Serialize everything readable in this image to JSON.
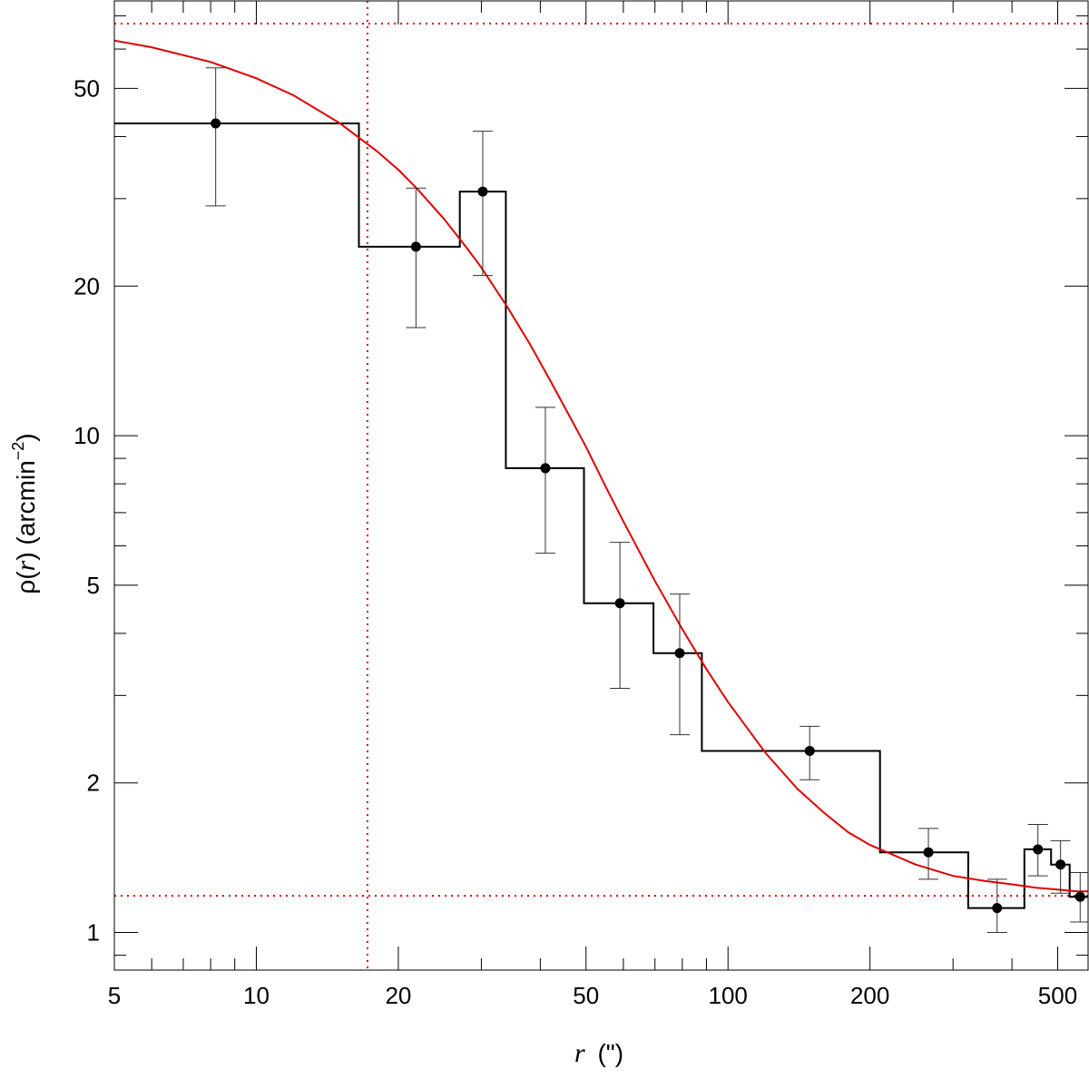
{
  "chart_data": {
    "type": "scatter",
    "title": "",
    "xlabel": {
      "var": "r",
      "unit": "(\")"
    },
    "ylabel": {
      "prefix": "ρ(",
      "var": "r",
      "mid": ") (arcmin",
      "sup": "−2",
      "suffix": ")"
    },
    "x_scale": "log",
    "y_scale": "log",
    "xlim": [
      5,
      580
    ],
    "ylim": [
      0.84,
      75
    ],
    "x_ticks": [
      {
        "value": 5,
        "label": "5"
      },
      {
        "value": 10,
        "label": "10"
      },
      {
        "value": 20,
        "label": "20"
      },
      {
        "value": 50,
        "label": "50"
      },
      {
        "value": 100,
        "label": "100"
      },
      {
        "value": 200,
        "label": "200"
      },
      {
        "value": 500,
        "label": "500"
      }
    ],
    "y_ticks": [
      {
        "value": 1,
        "label": "1"
      },
      {
        "value": 2,
        "label": "2"
      },
      {
        "value": 5,
        "label": "5"
      },
      {
        "value": 10,
        "label": "10"
      },
      {
        "value": 20,
        "label": "20"
      },
      {
        "value": 50,
        "label": "50"
      }
    ],
    "grid": false,
    "colors": {
      "data": "#000000",
      "fit": "#e00000",
      "reference_lines": "#e00000"
    },
    "points": [
      {
        "x": 8.2,
        "y": 42.5,
        "err_low": 29.0,
        "err_high": 55.0
      },
      {
        "x": 21.8,
        "y": 24.0,
        "err_low": 16.5,
        "err_high": 31.5
      },
      {
        "x": 30.2,
        "y": 31.0,
        "err_low": 21.0,
        "err_high": 41.0
      },
      {
        "x": 41.0,
        "y": 8.6,
        "err_low": 5.8,
        "err_high": 11.4
      },
      {
        "x": 59.0,
        "y": 4.6,
        "err_low": 3.1,
        "err_high": 6.1
      },
      {
        "x": 79.0,
        "y": 3.65,
        "err_low": 2.5,
        "err_high": 4.8
      },
      {
        "x": 149.0,
        "y": 2.32,
        "err_low": 2.03,
        "err_high": 2.6
      },
      {
        "x": 266.0,
        "y": 1.45,
        "err_low": 1.28,
        "err_high": 1.62
      },
      {
        "x": 372.0,
        "y": 1.12,
        "err_low": 1.0,
        "err_high": 1.28
      },
      {
        "x": 454.0,
        "y": 1.47,
        "err_low": 1.3,
        "err_high": 1.65
      },
      {
        "x": 507.0,
        "y": 1.37,
        "err_low": 1.2,
        "err_high": 1.53
      },
      {
        "x": 558.0,
        "y": 1.18,
        "err_low": 1.05,
        "err_high": 1.32
      }
    ],
    "histogram_steps": [
      {
        "x0": 5,
        "x1": 16.5,
        "y": 42.5
      },
      {
        "x0": 16.5,
        "x1": 27.0,
        "y": 24.0
      },
      {
        "x0": 27.0,
        "x1": 33.8,
        "y": 31.0
      },
      {
        "x0": 33.8,
        "x1": 49.5,
        "y": 8.6
      },
      {
        "x0": 49.5,
        "x1": 69.5,
        "y": 4.6
      },
      {
        "x0": 69.5,
        "x1": 88.0,
        "y": 3.65
      },
      {
        "x0": 88.0,
        "x1": 210.0,
        "y": 2.32
      },
      {
        "x0": 210.0,
        "x1": 323.0,
        "y": 1.45
      },
      {
        "x0": 323.0,
        "x1": 425.0,
        "y": 1.12
      },
      {
        "x0": 425.0,
        "x1": 484.0,
        "y": 1.47
      },
      {
        "x0": 484.0,
        "x1": 530.0,
        "y": 1.37
      },
      {
        "x0": 530.0,
        "x1": 580.0,
        "y": 1.18
      }
    ],
    "fit_curve": {
      "x": [
        5,
        6,
        8,
        10,
        12,
        15,
        18,
        20,
        22,
        25,
        28,
        30,
        34,
        38,
        42,
        46,
        50,
        55,
        60,
        65,
        70,
        80,
        90,
        100,
        120,
        140,
        160,
        180,
        200,
        250,
        300,
        350,
        400,
        450,
        500,
        550,
        580
      ],
      "y": [
        62.4,
        60.5,
        56.5,
        52.4,
        48.4,
        42.6,
        37.4,
        34.3,
        31.3,
        27.3,
        23.8,
        21.8,
        18.2,
        15.3,
        12.9,
        11.0,
        9.5,
        7.9,
        6.72,
        5.82,
        5.1,
        4.08,
        3.39,
        2.91,
        2.3,
        1.95,
        1.74,
        1.59,
        1.5,
        1.37,
        1.3,
        1.27,
        1.25,
        1.23,
        1.22,
        1.21,
        1.21
      ]
    },
    "reference_lines": {
      "vertical_x": 17.2,
      "horizontal_y": [
        67.5,
        1.185
      ]
    }
  }
}
